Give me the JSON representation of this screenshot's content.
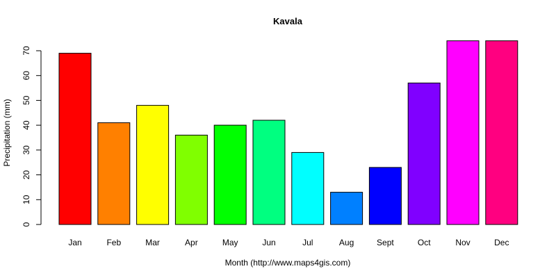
{
  "chart_data": {
    "type": "bar",
    "title": "Kavala",
    "xlabel": "Month (http://www.maps4gis.com)",
    "ylabel": "Precipitation (mm)",
    "ylim": [
      0,
      70
    ],
    "yticks": [
      0,
      10,
      20,
      30,
      40,
      50,
      60,
      70
    ],
    "grid": false,
    "legend": null,
    "categories": [
      "Jan",
      "Feb",
      "Mar",
      "Apr",
      "May",
      "Jun",
      "Jul",
      "Aug",
      "Sept",
      "Oct",
      "Nov",
      "Dec"
    ],
    "values": [
      69,
      41,
      48,
      36,
      40,
      42,
      29,
      13,
      23,
      57,
      74,
      74
    ],
    "colors": [
      "#FF0000",
      "#FF8000",
      "#FFFF00",
      "#80FF00",
      "#00FF00",
      "#00FF80",
      "#00FFFF",
      "#0080FF",
      "#0000FF",
      "#8000FF",
      "#FF00FF",
      "#FF0080"
    ]
  }
}
